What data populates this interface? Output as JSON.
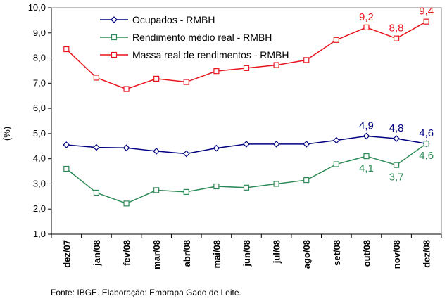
{
  "chart_data": {
    "type": "line",
    "title": "",
    "xlabel": "",
    "ylabel": "(%)",
    "ylim": [
      1.0,
      10.0
    ],
    "yticks": [
      "1,0",
      "2,0",
      "3,0",
      "4,0",
      "5,0",
      "6,0",
      "7,0",
      "8,0",
      "9,0",
      "10,0"
    ],
    "categories": [
      "dez/07",
      "jan/08",
      "fev/08",
      "mar/08",
      "abr/08",
      "mai/08",
      "jun/08",
      "jul/08",
      "ago/08",
      "set/08",
      "out/08",
      "nov/08",
      "dez/08"
    ],
    "grid": false,
    "legend_position": "top-left",
    "series": [
      {
        "name": "Ocupados - RMBH",
        "color": "#000080",
        "marker": "diamond",
        "values": [
          4.55,
          4.45,
          4.43,
          4.3,
          4.2,
          4.42,
          4.58,
          4.58,
          4.58,
          4.73,
          4.9,
          4.8,
          4.6
        ]
      },
      {
        "name": "Rendimento médio real - RMBH",
        "color": "#2E8B57",
        "marker": "square",
        "values": [
          3.6,
          2.65,
          2.22,
          2.75,
          2.68,
          2.9,
          2.85,
          3.0,
          3.15,
          3.78,
          4.1,
          3.75,
          4.6
        ]
      },
      {
        "name": "Massa real de rendimentos - RMBH",
        "color": "#E8141E",
        "marker": "square",
        "values": [
          8.35,
          7.22,
          6.77,
          7.18,
          7.05,
          7.48,
          7.6,
          7.72,
          7.92,
          8.72,
          9.22,
          8.78,
          9.45
        ]
      }
    ],
    "data_labels": [
      {
        "series": 0,
        "index": 10,
        "text": "4,9",
        "position": "above"
      },
      {
        "series": 0,
        "index": 11,
        "text": "4,8",
        "position": "above"
      },
      {
        "series": 0,
        "index": 12,
        "text": "4,6",
        "position": "above"
      },
      {
        "series": 1,
        "index": 10,
        "text": "4,1",
        "position": "below"
      },
      {
        "series": 1,
        "index": 11,
        "text": "3,7",
        "position": "below"
      },
      {
        "series": 1,
        "index": 12,
        "text": "4,6",
        "position": "below"
      },
      {
        "series": 2,
        "index": 10,
        "text": "9,2",
        "position": "above"
      },
      {
        "series": 2,
        "index": 11,
        "text": "8,8",
        "position": "above"
      },
      {
        "series": 2,
        "index": 12,
        "text": "9,4",
        "position": "above"
      }
    ]
  },
  "source_note": "Fonte: IBGE. Elaboração: Embrapa Gado de Leite."
}
